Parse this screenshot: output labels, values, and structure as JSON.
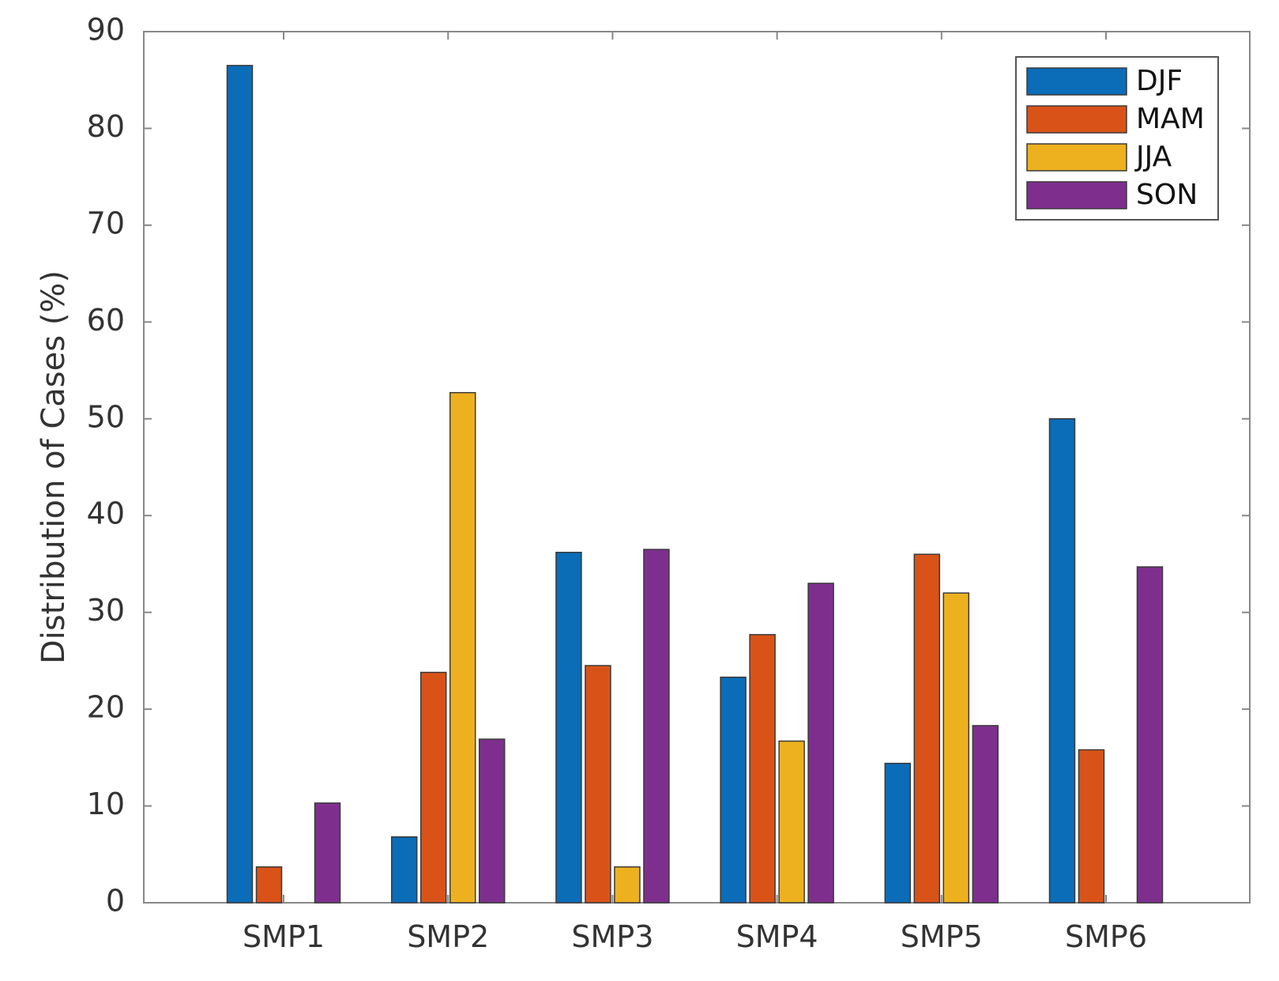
{
  "chart_data": {
    "type": "bar",
    "title": "",
    "xlabel": "",
    "ylabel": "Distribution of Cases (%)",
    "ylim": [
      0,
      90
    ],
    "yticks": [
      0,
      10,
      20,
      30,
      40,
      50,
      60,
      70,
      80,
      90
    ],
    "categories": [
      "SMP1",
      "SMP2",
      "SMP3",
      "SMP4",
      "SMP5",
      "SMP6"
    ],
    "series": [
      {
        "name": "DJF",
        "color": "#0b6cb8",
        "values": [
          86.5,
          6.8,
          36.2,
          23.3,
          14.4,
          50
        ]
      },
      {
        "name": "MAM",
        "color": "#d95319",
        "values": [
          3.7,
          23.8,
          24.5,
          27.7,
          36,
          15.8
        ]
      },
      {
        "name": "JJA",
        "color": "#edb120",
        "values": [
          0,
          52.7,
          3.7,
          16.7,
          32,
          0
        ]
      },
      {
        "name": "SON",
        "color": "#7e2f8e",
        "values": [
          10.3,
          16.9,
          36.5,
          33,
          18.3,
          34.7
        ]
      }
    ],
    "legend_position": "top-right",
    "grid": false
  }
}
